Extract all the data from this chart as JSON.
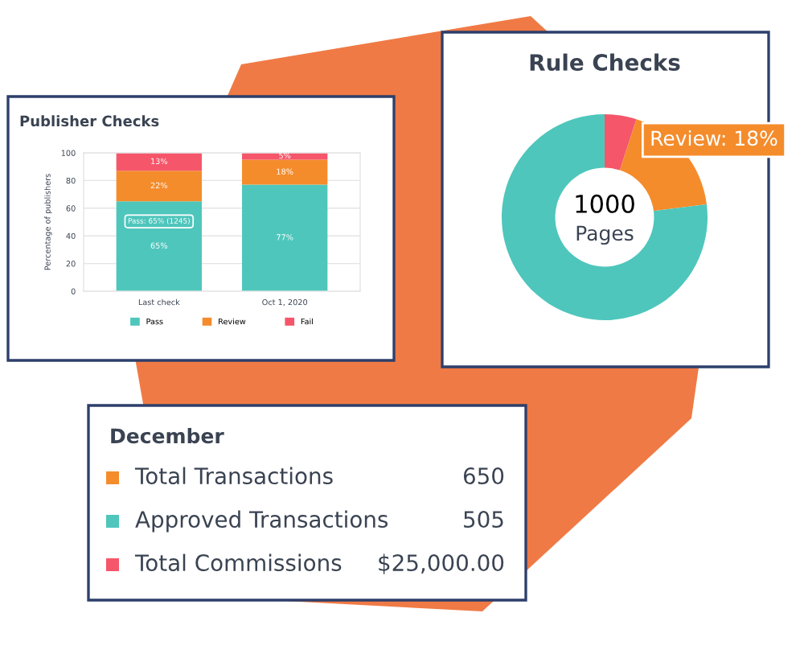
{
  "chart_data": [
    {
      "type": "bar",
      "title": "Publisher Checks",
      "ylabel": "Percentage of publishers",
      "categories": [
        "Last check",
        "Oct 1, 2020"
      ],
      "stacked": true,
      "series": [
        {
          "name": "Pass",
          "color": "#4ec6bc",
          "values": [
            65,
            77
          ],
          "value_labels": [
            "65%",
            "77%"
          ]
        },
        {
          "name": "Review",
          "color": "#f48c2c",
          "values": [
            22,
            18
          ],
          "value_labels": [
            "22%",
            "18%"
          ]
        },
        {
          "name": "Fail",
          "color": "#f5566a",
          "values": [
            13,
            5
          ],
          "value_labels": [
            "13%",
            "5%"
          ]
        }
      ],
      "ylim": [
        0,
        100
      ],
      "yticks": [
        0,
        20,
        40,
        60,
        80,
        100
      ],
      "grid": true,
      "legend": "bottom",
      "annotations": [
        {
          "text": "Pass: 65% (1245)",
          "x": "Last check",
          "y": 65
        }
      ]
    },
    {
      "type": "donut",
      "title": "Rule Checks",
      "categories": [
        null,
        null,
        null
      ],
      "values": [
        5,
        18,
        77
      ],
      "colors": [
        "#f5566a",
        "#f48c2c",
        "#4ec6bc"
      ],
      "annotations": [
        "1000",
        "Pages",
        "Review: 18%"
      ]
    },
    {
      "type": "other",
      "title": "December",
      "colors": [
        "#f48c2c",
        "#4ec6bc",
        "#f5566a"
      ],
      "annotations": [
        "Total Transactions",
        "650",
        "Approved Transactions",
        "505",
        "Total Commissions",
        "$25,000.00"
      ]
    }
  ]
}
